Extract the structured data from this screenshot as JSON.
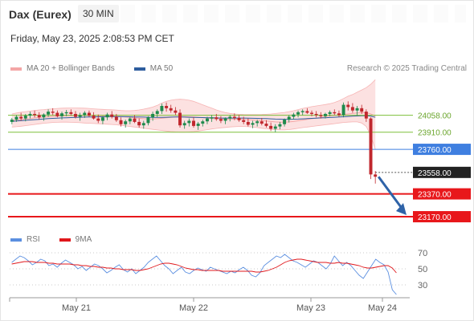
{
  "header": {
    "instrument": "Dax (Eurex)",
    "timeframe": "30 MIN",
    "datetime": "Friday, May 23, 2025 2:08:53 PM CET"
  },
  "legend": {
    "ma20_label": "MA 20 + Bollinger Bands",
    "ma50_label": "MA 50",
    "credit": "Research © 2025 Trading Central",
    "rsi_label": "RSI",
    "ma9_label": "9MA"
  },
  "colors": {
    "bollinger": "#f4a6a6",
    "ma50": "#2e5d9e",
    "candle_up": "#1e8a4c",
    "candle_down": "#c0272d",
    "resistance": "#7dbf3a",
    "pivot": "#3f7fe0",
    "support": "#e8171b",
    "current": "#222222",
    "rsi": "#5b8fe0",
    "rsi_ma": "#e0171b",
    "arrow": "#2f63a8"
  },
  "chart_data": [
    {
      "type": "candlestick",
      "title": "Dax (Eurex)",
      "timeframe": "30 MIN",
      "x_tick_labels": [
        "May 21",
        "May 22",
        "May 23",
        "May 24"
      ],
      "ylim": [
        23100,
        24400
      ],
      "price_levels": [
        {
          "value": 24058.0,
          "label": "24058.00",
          "kind": "resistance"
        },
        {
          "value": 23910.0,
          "label": "23910.00",
          "kind": "resistance"
        },
        {
          "value": 23760.0,
          "label": "23760.00",
          "kind": "pivot"
        },
        {
          "value": 23558.0,
          "label": "23558.00",
          "kind": "current"
        },
        {
          "value": 23370.0,
          "label": "23370.00",
          "kind": "support"
        },
        {
          "value": 23170.0,
          "label": "23170.00",
          "kind": "support"
        }
      ],
      "candles": [
        [
          24000,
          24035,
          23980,
          24020
        ],
        [
          24020,
          24060,
          24000,
          24045
        ],
        [
          24045,
          24080,
          24010,
          24030
        ],
        [
          24030,
          24070,
          24005,
          24055
        ],
        [
          24055,
          24090,
          24030,
          24070
        ],
        [
          24070,
          24100,
          24040,
          24060
        ],
        [
          24060,
          24085,
          24020,
          24040
        ],
        [
          24040,
          24075,
          24010,
          24065
        ],
        [
          24065,
          24110,
          24045,
          24090
        ],
        [
          24090,
          24120,
          24060,
          24080
        ],
        [
          24080,
          24100,
          24040,
          24050
        ],
        [
          24050,
          24090,
          24020,
          24075
        ],
        [
          24075,
          24105,
          24050,
          24085
        ],
        [
          24085,
          24110,
          24055,
          24070
        ],
        [
          24070,
          24095,
          24030,
          24045
        ],
        [
          24045,
          24080,
          24010,
          24060
        ],
        [
          24060,
          24095,
          24035,
          24080
        ],
        [
          24080,
          24100,
          24045,
          24055
        ],
        [
          24055,
          24085,
          24020,
          24030
        ],
        [
          24030,
          24065,
          23990,
          24010
        ],
        [
          24010,
          24050,
          23980,
          24040
        ],
        [
          24040,
          24080,
          24015,
          24065
        ],
        [
          24065,
          24095,
          24030,
          24045
        ],
        [
          24045,
          24070,
          24000,
          24015
        ],
        [
          24015,
          24040,
          23960,
          23980
        ],
        [
          23980,
          24020,
          23950,
          24005
        ],
        [
          24005,
          24040,
          23980,
          24030
        ],
        [
          24030,
          24060,
          23990,
          24000
        ],
        [
          24000,
          24030,
          23950,
          23970
        ],
        [
          23970,
          24010,
          23940,
          23990
        ],
        [
          23990,
          24050,
          23970,
          24040
        ],
        [
          24040,
          24090,
          24010,
          24070
        ],
        [
          24070,
          24110,
          24040,
          24095
        ],
        [
          24095,
          24160,
          24070,
          24140
        ],
        [
          24140,
          24170,
          24090,
          24120
        ],
        [
          24120,
          24150,
          24080,
          24100
        ],
        [
          24100,
          24130,
          24060,
          24080
        ],
        [
          24080,
          24110,
          23950,
          23970
        ],
        [
          23970,
          24010,
          23940,
          23990
        ],
        [
          23990,
          24030,
          23960,
          24010
        ],
        [
          24010,
          24040,
          23950,
          23965
        ],
        [
          23965,
          24000,
          23930,
          23985
        ],
        [
          23985,
          24020,
          23960,
          24005
        ],
        [
          24005,
          24045,
          23980,
          24030
        ],
        [
          24030,
          24060,
          24000,
          24040
        ],
        [
          24040,
          24070,
          24010,
          24025
        ],
        [
          24025,
          24050,
          23990,
          24010
        ],
        [
          24010,
          24040,
          23980,
          24030
        ],
        [
          24030,
          24060,
          24005,
          24045
        ],
        [
          24045,
          24075,
          24015,
          24035
        ],
        [
          24035,
          24060,
          24000,
          24015
        ],
        [
          24015,
          24045,
          23980,
          24000
        ],
        [
          24000,
          24030,
          23960,
          23975
        ],
        [
          23975,
          24010,
          23945,
          23990
        ],
        [
          23990,
          24020,
          23960,
          24005
        ],
        [
          24005,
          24035,
          23970,
          23985
        ],
        [
          23985,
          24015,
          23950,
          23965
        ],
        [
          23965,
          23995,
          23920,
          23940
        ],
        [
          23940,
          23980,
          23910,
          23960
        ],
        [
          23960,
          24000,
          23935,
          23980
        ],
        [
          23980,
          24030,
          23960,
          24020
        ],
        [
          24020,
          24060,
          23995,
          24045
        ],
        [
          24045,
          24080,
          24020,
          24065
        ],
        [
          24065,
          24100,
          24040,
          24085
        ],
        [
          24085,
          24110,
          24060,
          24095
        ],
        [
          24095,
          24120,
          24070,
          24080
        ],
        [
          24080,
          24100,
          24050,
          24070
        ],
        [
          24070,
          24095,
          24040,
          24060
        ],
        [
          24060,
          24085,
          24030,
          24050
        ],
        [
          24050,
          24080,
          24030,
          24070
        ],
        [
          24070,
          24100,
          24050,
          24085
        ],
        [
          24085,
          24110,
          24060,
          24075
        ],
        [
          24075,
          24100,
          24045,
          24060
        ],
        [
          24060,
          24170,
          24040,
          24150
        ],
        [
          24150,
          24180,
          24100,
          24130
        ],
        [
          24130,
          24165,
          24080,
          24100
        ],
        [
          24100,
          24140,
          24060,
          24120
        ],
        [
          24120,
          24150,
          24070,
          24090
        ],
        [
          24090,
          24110,
          24000,
          24030
        ],
        [
          24030,
          24040,
          23500,
          23540
        ],
        [
          23540,
          23570,
          23460,
          23520
        ]
      ],
      "series": [
        {
          "name": "MA 20 + Bollinger Bands",
          "values": [
            24010,
            24015,
            24020,
            24025,
            24030,
            24035,
            24040,
            24042,
            24045,
            24048,
            24050,
            24052,
            24054,
            24055,
            24056,
            24056,
            24057,
            24058,
            24057,
            24055,
            24053,
            24052,
            24052,
            24051,
            24048,
            24044,
            24040,
            24036,
            24032,
            24028,
            24026,
            24026,
            24028,
            24032,
            24036,
            24040,
            24044,
            24046,
            24046,
            24045,
            24043,
            24040,
            24036,
            24033,
            24030,
            24028,
            24026,
            24025,
            24025,
            24025,
            24024,
            24022,
            24020,
            24017,
            24014,
            24011,
            24008,
            24004,
            24000,
            23998,
            23998,
            24000,
            24004,
            24010,
            24016,
            24022,
            24028,
            24034,
            24040,
            24046,
            24052,
            24057,
            24061,
            24066,
            24070,
            24074,
            24078,
            24080,
            24081,
            24070,
            24050
          ],
          "upper": [
            24070,
            24078,
            24085,
            24090,
            24095,
            24100,
            24105,
            24108,
            24112,
            24115,
            24118,
            24120,
            24121,
            24122,
            24122,
            24121,
            24120,
            24118,
            24115,
            24112,
            24110,
            24108,
            24106,
            24104,
            24100,
            24098,
            24098,
            24100,
            24105,
            24112,
            24120,
            24130,
            24145,
            24165,
            24180,
            24190,
            24196,
            24198,
            24196,
            24190,
            24180,
            24165,
            24150,
            24135,
            24120,
            24105,
            24092,
            24082,
            24075,
            24070,
            24067,
            24065,
            24064,
            24064,
            24064,
            24065,
            24067,
            24070,
            24074,
            24078,
            24083,
            24090,
            24098,
            24108,
            24118,
            24126,
            24134,
            24140,
            24146,
            24152,
            24160,
            24170,
            24185,
            24205,
            24225,
            24240,
            24260,
            24280,
            24300,
            24330,
            24370
          ],
          "lower": [
            23955,
            23958,
            23962,
            23967,
            23972,
            23978,
            23983,
            23988,
            23992,
            23995,
            23997,
            23998,
            23998,
            23997,
            23995,
            23993,
            23990,
            23988,
            23986,
            23984,
            23982,
            23980,
            23978,
            23975,
            23970,
            23965,
            23960,
            23955,
            23950,
            23945,
            23940,
            23935,
            23930,
            23925,
            23920,
            23915,
            23912,
            23910,
            23910,
            23912,
            23915,
            23920,
            23926,
            23932,
            23938,
            23943,
            23948,
            23952,
            23956,
            23958,
            23960,
            23960,
            23958,
            23955,
            23950,
            23945,
            23940,
            23936,
            23932,
            23930,
            23930,
            23933,
            23938,
            23944,
            23950,
            23955,
            23960,
            23965,
            23970,
            23975,
            23980,
            23985,
            23990,
            23995,
            23998,
            24000,
            24000,
            23990,
            23960,
            23880,
            23760
          ]
        },
        {
          "name": "MA 50",
          "values": [
            24005,
            24008,
            24011,
            24014,
            24017,
            24020,
            24023,
            24026,
            24029,
            24031,
            24033,
            24035,
            24037,
            24038,
            24040,
            24041,
            24042,
            24043,
            24044,
            24045,
            24045,
            24046,
            24046,
            24046,
            24046,
            24046,
            24045,
            24044,
            24043,
            24042,
            24041,
            24040,
            24040,
            24040,
            24041,
            24042,
            24043,
            24043,
            24042,
            24041,
            24040,
            24039,
            24038,
            24037,
            24036,
            24035,
            24034,
            24034,
            24034,
            24034,
            24034,
            24034,
            24033,
            24032,
            24031,
            24030,
            24029,
            24027,
            24025,
            24024,
            24023,
            24023,
            24024,
            24025,
            24027,
            24029,
            24031,
            24033,
            24035,
            24037,
            24039,
            24041,
            24043,
            24045,
            24048,
            24050,
            24052,
            24054,
            24055,
            24050,
            24040
          ]
        }
      ]
    },
    {
      "type": "line",
      "title": "RSI",
      "ylim": [
        15,
        75
      ],
      "y_ticks": [
        "70",
        "50",
        "30"
      ],
      "x_tick_labels": [
        "May 21",
        "May 22",
        "May 23",
        "May 24"
      ],
      "series": [
        {
          "name": "RSI",
          "values": [
            58,
            62,
            66,
            64,
            60,
            55,
            58,
            62,
            60,
            54,
            56,
            52,
            57,
            61,
            58,
            55,
            50,
            53,
            48,
            52,
            56,
            54,
            50,
            45,
            48,
            52,
            55,
            49,
            46,
            50,
            44,
            48,
            52,
            58,
            62,
            66,
            60,
            54,
            50,
            44,
            48,
            52,
            46,
            44,
            48,
            51,
            49,
            47,
            52,
            50,
            48,
            46,
            44,
            47,
            45,
            49,
            52,
            48,
            42,
            40,
            45,
            54,
            58,
            62,
            66,
            64,
            68,
            64,
            60,
            58,
            55,
            52,
            56,
            60,
            58,
            54,
            50,
            56,
            66,
            60,
            54,
            58,
            54,
            48,
            42,
            38,
            46,
            54,
            62,
            58,
            55,
            46,
            24,
            18
          ]
        },
        {
          "name": "9MA",
          "values": [
            56,
            57,
            58,
            59,
            59,
            59,
            58,
            58,
            58,
            57,
            57,
            56,
            56,
            56,
            56,
            55,
            55,
            54,
            54,
            53,
            53,
            52,
            52,
            51,
            51,
            50,
            50,
            49,
            49,
            49,
            48,
            48,
            49,
            50,
            52,
            54,
            56,
            57,
            57,
            56,
            55,
            53,
            51,
            50,
            49,
            49,
            48,
            48,
            48,
            48,
            48,
            47,
            47,
            47,
            47,
            47,
            47,
            47,
            47,
            46,
            46,
            47,
            48,
            50,
            52,
            55,
            58,
            60,
            61,
            62,
            62,
            61,
            60,
            59,
            58,
            58,
            58,
            57,
            57,
            58,
            57,
            57,
            56,
            55,
            54,
            52,
            51,
            51,
            52,
            53,
            54,
            54,
            51,
            45
          ]
        }
      ]
    }
  ]
}
